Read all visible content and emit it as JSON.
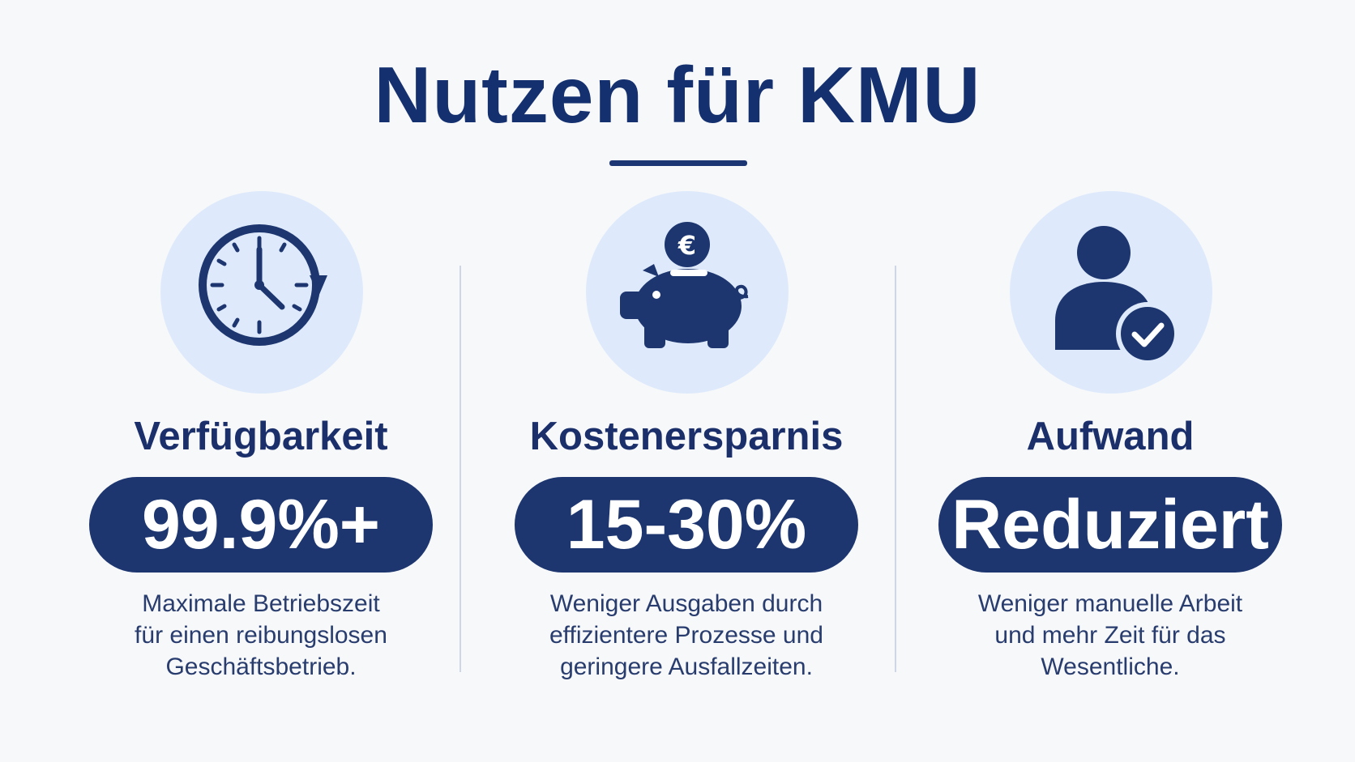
{
  "title": "Nutzen für KMU",
  "colors": {
    "primary": "#1d366f",
    "icon_background": "#deeafb",
    "background": "#f7f8fa"
  },
  "benefits": [
    {
      "icon": "clock-icon",
      "heading": "Verfügbarkeit",
      "value": "99.9%+",
      "description": [
        "Maximale Betriebszeit",
        "für einen reibungslosen",
        "Geschäftsbetrieb."
      ]
    },
    {
      "icon": "piggy-bank-euro-icon",
      "heading": "Kostenersparnis",
      "value": "15-30%",
      "description": [
        "Weniger Ausgaben durch",
        "effizientere Prozesse und",
        "geringere Ausfallzeiten."
      ]
    },
    {
      "icon": "user-check-icon",
      "heading": "Aufwand",
      "value": "Reduziert",
      "description": [
        "Weniger manuelle Arbeit",
        "und mehr Zeit für das",
        "Wesentliche."
      ]
    }
  ]
}
